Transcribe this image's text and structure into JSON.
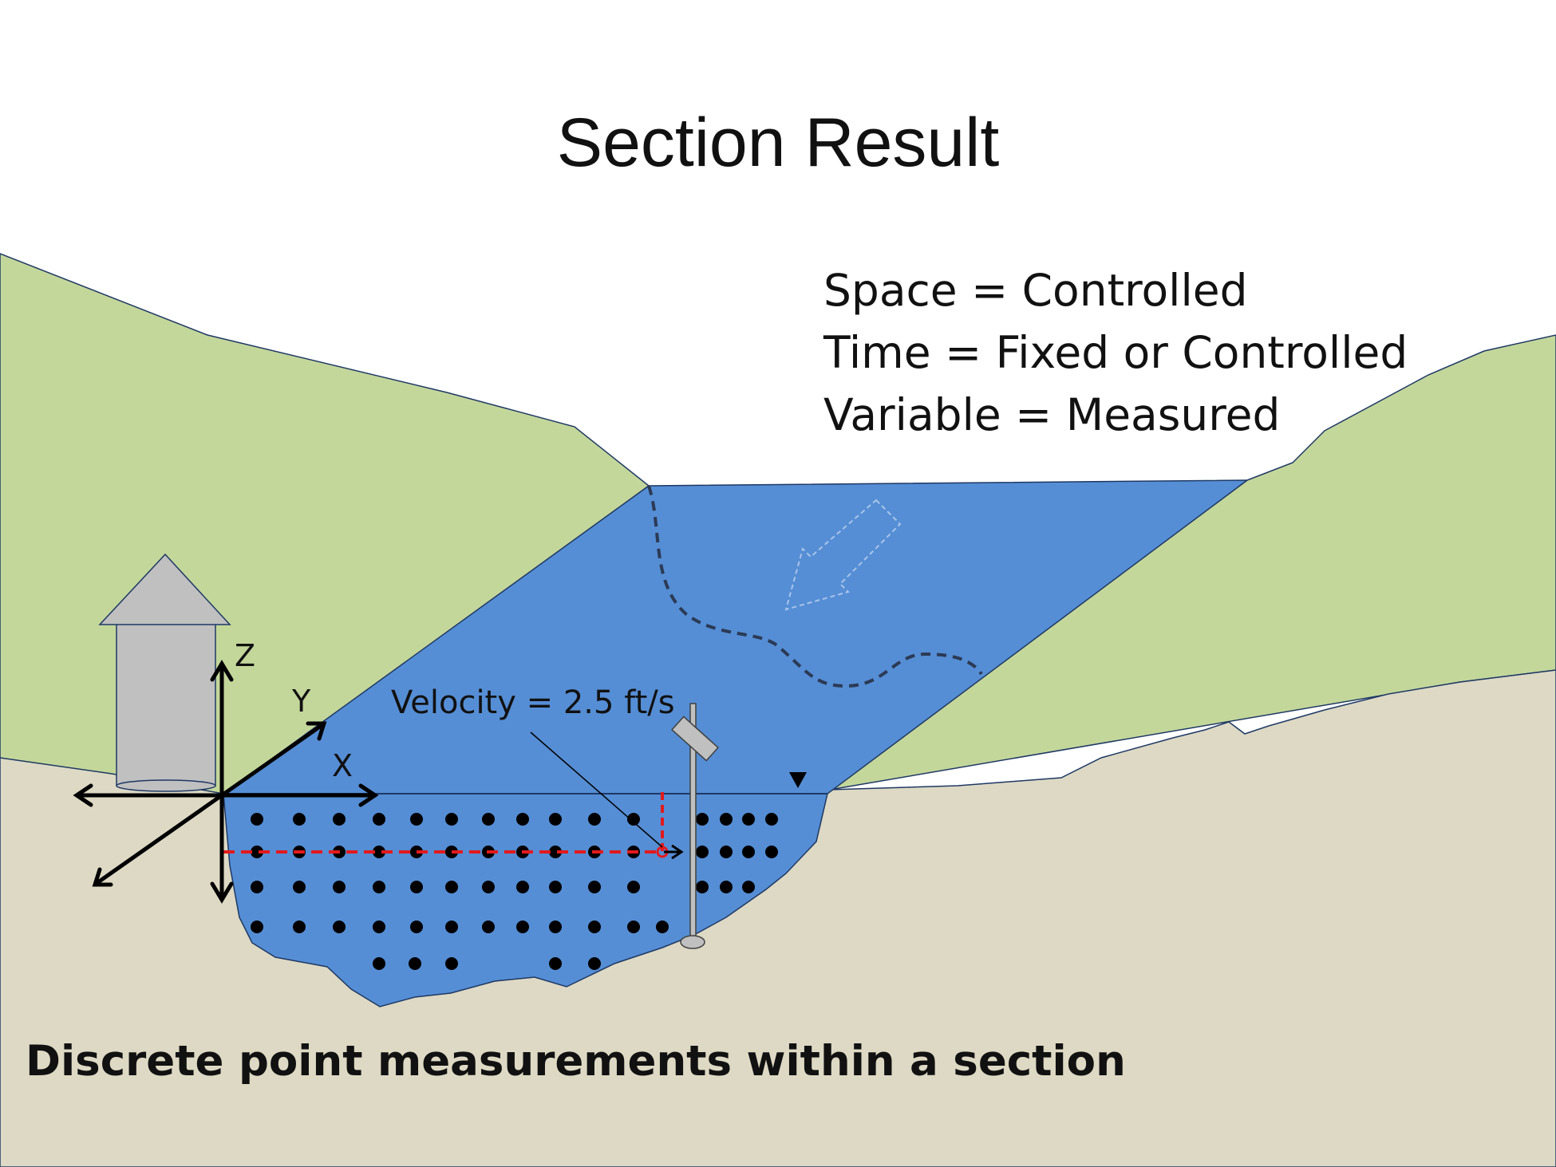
{
  "title": "Section Result",
  "info_lines": [
    "Space = Controlled",
    "Time = Fixed or Controlled",
    "Variable = Measured"
  ],
  "velocity_label": "Velocity = 2.5 ft/s",
  "axis_labels": {
    "x": "X",
    "y": "Y",
    "z": "Z"
  },
  "caption": "Discrete point measurements within a section",
  "measurement_grid": {
    "rows": [
      {
        "row": 1,
        "points": 15
      },
      {
        "row": 2,
        "points": 15
      },
      {
        "row": 3,
        "points": 14
      },
      {
        "row": 4,
        "points": 12
      },
      {
        "row": 5,
        "points": 5
      }
    ]
  },
  "colors": {
    "hills": "#c4d79b",
    "ground": "#ddd9c4",
    "water": "#558ed5",
    "outline": "#1f3864",
    "gauge_house": "#c0c0c0",
    "measurement_path": "#e31a1c",
    "points": "#000000"
  }
}
